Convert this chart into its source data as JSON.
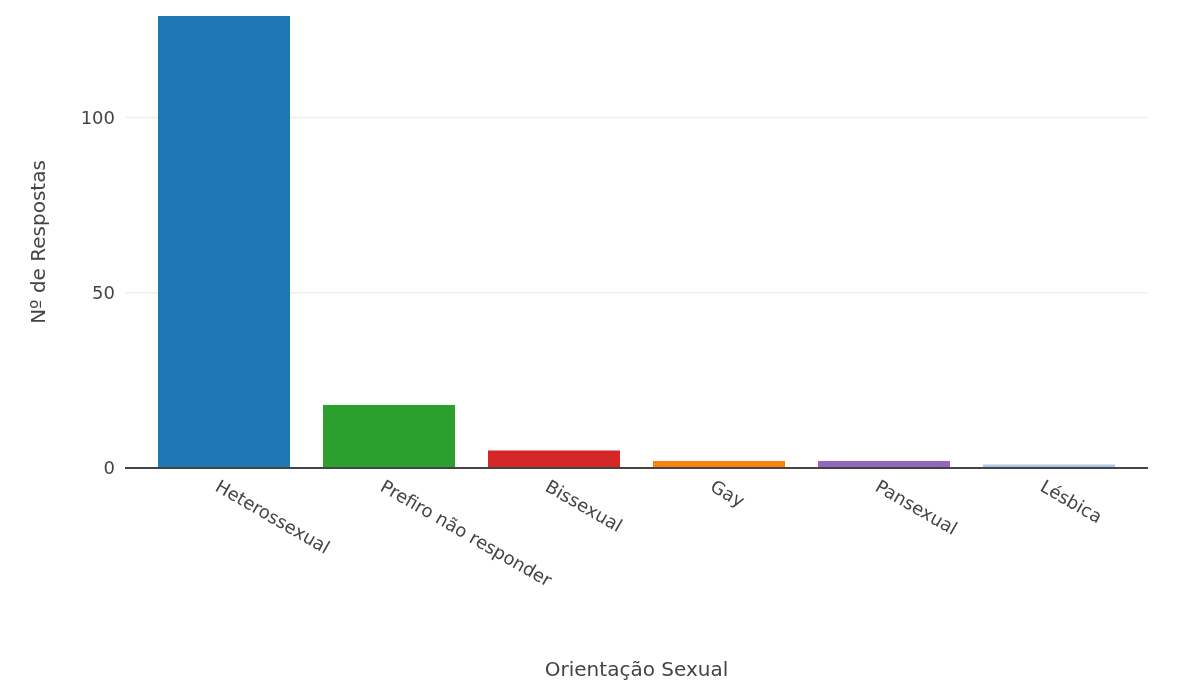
{
  "chart_data": {
    "type": "bar",
    "xlabel": "Orientação Sexual",
    "ylabel": "Nº de Respostas",
    "categories": [
      "Heterossexual",
      "Prefiro não responder",
      "Bissexual",
      "Gay",
      "Pansexual",
      "Lésbica"
    ],
    "values": [
      129,
      18,
      5,
      2,
      2,
      1
    ],
    "colors": [
      "#1f77b4",
      "#2ca02c",
      "#d62728",
      "#ff7f0e",
      "#9467bd",
      "#aec7e8"
    ],
    "ylim": [
      0,
      129
    ],
    "yticks": [
      0,
      50,
      100
    ],
    "grid": "y"
  }
}
